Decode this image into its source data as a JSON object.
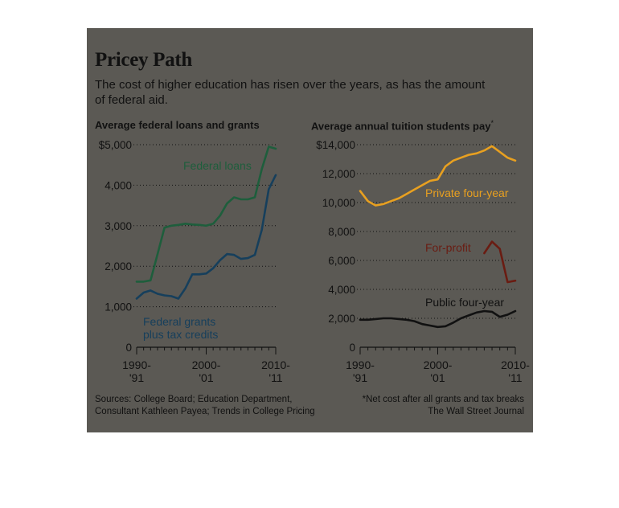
{
  "header": {
    "title": "Pricey Path",
    "subtitle": "The cost of higher education has risen over the years, as has the amount of federal aid."
  },
  "sources": {
    "left_line1": "Sources: College Board; Education Department,",
    "left_line2": "Consultant Kathleen Payea; Trends in College Pricing",
    "right_line1": "*Net cost after all grants and tax breaks",
    "right_line2": "The Wall Street Journal"
  },
  "colors": {
    "background": "#5b5954",
    "federal_loans": "#1e5e3c",
    "federal_grants": "#163f5c",
    "private_four_year": "#e8a020",
    "for_profit": "#6a1c12",
    "public_four_year": "#111111",
    "text": "#111111"
  },
  "chart_data": [
    {
      "type": "line",
      "title": "Average federal loans and grants",
      "xlabel": "",
      "ylabel": "",
      "ylim": [
        0,
        5000
      ],
      "yticks": [
        0,
        1000,
        2000,
        3000,
        4000,
        5000
      ],
      "ytick_labels": [
        "0",
        "1,000",
        "2,000",
        "3,000",
        "4,000",
        "$5,000"
      ],
      "xticks": [
        1990,
        2000,
        2010
      ],
      "xtick_labels": [
        [
          "1990-",
          "'91"
        ],
        [
          "2000-",
          "'01"
        ],
        [
          "2010-",
          "'11"
        ]
      ],
      "xlim": [
        1990,
        2010
      ],
      "grid": "horizontal dotted",
      "series": [
        {
          "name": "Federal loans",
          "x": [
            1990,
            1991,
            1992,
            1993,
            1994,
            1995,
            1996,
            1997,
            1998,
            1999,
            2000,
            2001,
            2002,
            2003,
            2004,
            2005,
            2006,
            2007,
            2008,
            2009,
            2010
          ],
          "y": [
            1620,
            1620,
            1650,
            2300,
            2950,
            3000,
            3020,
            3050,
            3030,
            3020,
            3000,
            3050,
            3250,
            3550,
            3700,
            3650,
            3650,
            3700,
            4400,
            4950,
            4900
          ]
        },
        {
          "name": "Federal grants plus tax credits",
          "x": [
            1990,
            1991,
            1992,
            1993,
            1994,
            1995,
            1996,
            1997,
            1998,
            1999,
            2000,
            2001,
            2002,
            2003,
            2004,
            2005,
            2006,
            2007,
            2008,
            2009,
            2010
          ],
          "y": [
            1200,
            1350,
            1400,
            1320,
            1280,
            1260,
            1200,
            1450,
            1800,
            1800,
            1820,
            1950,
            2150,
            2300,
            2280,
            2180,
            2200,
            2280,
            2900,
            3900,
            4250
          ]
        }
      ]
    },
    {
      "type": "line",
      "title": "Average annual tuition students pay*",
      "xlabel": "",
      "ylabel": "",
      "ylim": [
        0,
        14000
      ],
      "yticks": [
        0,
        2000,
        4000,
        6000,
        8000,
        10000,
        12000,
        14000
      ],
      "ytick_labels": [
        "0",
        "2,000",
        "4,000",
        "6,000",
        "8,000",
        "10,000",
        "12,000",
        "$14,000"
      ],
      "xticks": [
        1990,
        2000,
        2010
      ],
      "xtick_labels": [
        [
          "1990-",
          "'91"
        ],
        [
          "2000-",
          "'01"
        ],
        [
          "2010-",
          "'11"
        ]
      ],
      "xlim": [
        1990,
        2010
      ],
      "grid": "horizontal dotted",
      "series": [
        {
          "name": "Private four-year",
          "x": [
            1990,
            1991,
            1992,
            1993,
            1994,
            1995,
            1996,
            1997,
            1998,
            1999,
            2000,
            2001,
            2002,
            2003,
            2004,
            2005,
            2006,
            2007,
            2008,
            2009,
            2010
          ],
          "y": [
            10800,
            10100,
            9800,
            9900,
            10100,
            10300,
            10600,
            10900,
            11200,
            11500,
            11600,
            12500,
            12900,
            13100,
            13300,
            13400,
            13600,
            13900,
            13500,
            13100,
            12900
          ]
        },
        {
          "name": "For-profit",
          "x": [
            2006,
            2007,
            2008,
            2009,
            2010
          ],
          "y": [
            6500,
            7300,
            6800,
            4500,
            4600
          ]
        },
        {
          "name": "Public four-year",
          "x": [
            1990,
            1991,
            1992,
            1993,
            1994,
            1995,
            1996,
            1997,
            1998,
            1999,
            2000,
            2001,
            2002,
            2003,
            2004,
            2005,
            2006,
            2007,
            2008,
            2009,
            2010
          ],
          "y": [
            1900,
            1900,
            1950,
            2000,
            2000,
            1950,
            1900,
            1800,
            1600,
            1500,
            1400,
            1450,
            1700,
            2000,
            2200,
            2400,
            2500,
            2450,
            2100,
            2250,
            2500
          ]
        }
      ]
    }
  ]
}
